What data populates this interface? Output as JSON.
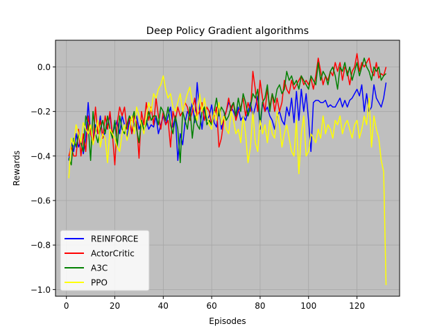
{
  "chart_data": {
    "type": "line",
    "title": "Deep Policy Gradient algorithms",
    "xlabel": "Episodes",
    "ylabel": "Rewards",
    "xlim": [
      -4.5,
      137.6
    ],
    "ylim": [
      -1.03,
      0.12
    ],
    "xticks": [
      0,
      20,
      40,
      60,
      80,
      100,
      120
    ],
    "yticks": [
      -1.0,
      -0.8,
      -0.6,
      -0.4,
      -0.2,
      0.0
    ],
    "ytick_labels": [
      "−1.0",
      "−0.8",
      "−0.6",
      "−0.4",
      "−0.2",
      "0.0"
    ],
    "grid": true,
    "background_color": "#bfbfbf",
    "legend_position": "lower-left",
    "series": [
      {
        "name": "REINFORCE",
        "color": "#0000ff",
        "x": [
          1,
          2,
          3,
          4,
          5,
          6,
          7,
          8,
          9,
          10,
          11,
          12,
          13,
          14,
          15,
          16,
          17,
          18,
          19,
          20,
          21,
          22,
          23,
          24,
          25,
          26,
          27,
          28,
          29,
          30,
          31,
          32,
          33,
          34,
          35,
          36,
          37,
          38,
          39,
          40,
          41,
          42,
          43,
          44,
          45,
          46,
          47,
          48,
          49,
          50,
          51,
          52,
          53,
          54,
          55,
          56,
          57,
          58,
          59,
          60,
          61,
          62,
          63,
          64,
          65,
          66,
          67,
          68,
          69,
          70,
          71,
          72,
          73,
          74,
          75,
          76,
          77,
          78,
          79,
          80,
          81,
          82,
          83,
          84,
          85,
          86,
          87,
          88,
          89,
          90,
          91,
          92,
          93,
          94,
          95,
          96,
          97,
          98,
          99,
          100,
          101,
          102,
          103,
          104,
          105,
          106,
          107,
          108,
          109,
          110,
          111,
          112,
          113,
          114,
          115,
          116,
          117,
          118,
          119,
          120,
          121,
          122,
          123,
          124,
          125,
          126,
          127,
          128,
          129,
          130,
          131,
          132
        ],
        "y": [
          -0.42,
          -0.34,
          -0.38,
          -0.3,
          -0.36,
          -0.33,
          -0.39,
          -0.32,
          -0.16,
          -0.3,
          -0.35,
          -0.26,
          -0.3,
          -0.22,
          -0.32,
          -0.29,
          -0.26,
          -0.22,
          -0.3,
          -0.27,
          -0.24,
          -0.3,
          -0.22,
          -0.26,
          -0.32,
          -0.24,
          -0.3,
          -0.26,
          -0.22,
          -0.28,
          -0.25,
          -0.29,
          -0.24,
          -0.28,
          -0.26,
          -0.27,
          -0.22,
          -0.3,
          -0.26,
          -0.22,
          -0.26,
          -0.22,
          -0.18,
          -0.27,
          -0.22,
          -0.42,
          -0.3,
          -0.35,
          -0.25,
          -0.2,
          -0.22,
          -0.16,
          -0.25,
          -0.07,
          -0.2,
          -0.28,
          -0.18,
          -0.24,
          -0.22,
          -0.17,
          -0.25,
          -0.27,
          -0.18,
          -0.28,
          -0.22,
          -0.2,
          -0.16,
          -0.18,
          -0.2,
          -0.23,
          -0.18,
          -0.24,
          -0.22,
          -0.24,
          -0.2,
          -0.16,
          -0.22,
          -0.18,
          -0.13,
          -0.28,
          -0.16,
          -0.2,
          -0.18,
          -0.22,
          -0.24,
          -0.28,
          -0.22,
          -0.2,
          -0.24,
          -0.26,
          -0.18,
          -0.22,
          -0.14,
          -0.25,
          -0.11,
          -0.24,
          -0.1,
          -0.2,
          -0.12,
          -0.24,
          -0.38,
          -0.16,
          -0.15,
          -0.15,
          -0.16,
          -0.16,
          -0.15,
          -0.18,
          -0.17,
          -0.18,
          -0.18,
          -0.16,
          -0.14,
          -0.18,
          -0.15,
          -0.18,
          -0.15,
          -0.14,
          -0.12,
          -0.1,
          -0.13,
          -0.08,
          -0.2,
          -0.12,
          -0.2,
          -0.18,
          -0.08,
          -0.14,
          -0.16,
          -0.18,
          -0.14,
          -0.07
        ]
      },
      {
        "name": "ActorCritic",
        "color": "#ff0000",
        "x": [
          1,
          2,
          3,
          4,
          5,
          6,
          7,
          8,
          9,
          10,
          11,
          12,
          13,
          14,
          15,
          16,
          17,
          18,
          19,
          20,
          21,
          22,
          23,
          24,
          25,
          26,
          27,
          28,
          29,
          30,
          31,
          32,
          33,
          34,
          35,
          36,
          37,
          38,
          39,
          40,
          41,
          42,
          43,
          44,
          45,
          46,
          47,
          48,
          49,
          50,
          51,
          52,
          53,
          54,
          55,
          56,
          57,
          58,
          59,
          60,
          61,
          62,
          63,
          64,
          65,
          66,
          67,
          68,
          69,
          70,
          71,
          72,
          73,
          74,
          75,
          76,
          77,
          78,
          79,
          80,
          81,
          82,
          83,
          84,
          85,
          86,
          87,
          88,
          89,
          90,
          91,
          92,
          93,
          94,
          95,
          96,
          97,
          98,
          99,
          100,
          101,
          102,
          103,
          104,
          105,
          106,
          107,
          108,
          109,
          110,
          111,
          112,
          113,
          114,
          115,
          116,
          117,
          118,
          119,
          120,
          121,
          122,
          123,
          124,
          125,
          126,
          127,
          128,
          129,
          130,
          131,
          132
        ],
        "y": [
          -0.4,
          -0.36,
          -0.4,
          -0.4,
          -0.28,
          -0.4,
          -0.3,
          -0.38,
          -0.22,
          -0.3,
          -0.34,
          -0.18,
          -0.3,
          -0.24,
          -0.32,
          -0.22,
          -0.28,
          -0.2,
          -0.3,
          -0.44,
          -0.25,
          -0.18,
          -0.22,
          -0.18,
          -0.28,
          -0.22,
          -0.3,
          -0.22,
          -0.25,
          -0.41,
          -0.2,
          -0.26,
          -0.16,
          -0.24,
          -0.18,
          -0.26,
          -0.14,
          -0.22,
          -0.28,
          -0.2,
          -0.26,
          -0.24,
          -0.36,
          -0.2,
          -0.24,
          -0.18,
          -0.22,
          -0.2,
          -0.16,
          -0.18,
          -0.24,
          -0.2,
          -0.14,
          -0.22,
          -0.2,
          -0.16,
          -0.24,
          -0.18,
          -0.2,
          -0.26,
          -0.22,
          -0.18,
          -0.36,
          -0.32,
          -0.24,
          -0.2,
          -0.14,
          -0.2,
          -0.16,
          -0.24,
          -0.2,
          -0.18,
          -0.14,
          -0.22,
          -0.16,
          -0.2,
          -0.02,
          -0.1,
          -0.2,
          -0.06,
          -0.14,
          -0.2,
          -0.1,
          -0.18,
          -0.12,
          -0.2,
          -0.14,
          -0.2,
          -0.16,
          -0.06,
          -0.1,
          -0.12,
          -0.06,
          -0.1,
          -0.08,
          -0.06,
          -0.04,
          -0.08,
          -0.06,
          -0.08,
          -0.05,
          -0.1,
          -0.04,
          0.04,
          -0.02,
          -0.08,
          -0.04,
          -0.06,
          -0.02,
          -0.04,
          0.02,
          -0.02,
          0.02,
          -0.06,
          0.0,
          -0.02,
          -0.08,
          -0.02,
          0.0,
          0.06,
          -0.02,
          0.02,
          0.0,
          0.02,
          0.04,
          -0.02,
          -0.04,
          0.02,
          -0.05,
          -0.03,
          -0.04,
          0.0
        ]
      },
      {
        "name": "A3C",
        "color": "#008000",
        "x": [
          1,
          2,
          3,
          4,
          5,
          6,
          7,
          8,
          9,
          10,
          11,
          12,
          13,
          14,
          15,
          16,
          17,
          18,
          19,
          20,
          21,
          22,
          23,
          24,
          25,
          26,
          27,
          28,
          29,
          30,
          31,
          32,
          33,
          34,
          35,
          36,
          37,
          38,
          39,
          40,
          41,
          42,
          43,
          44,
          45,
          46,
          47,
          48,
          49,
          50,
          51,
          52,
          53,
          54,
          55,
          56,
          57,
          58,
          59,
          60,
          61,
          62,
          63,
          64,
          65,
          66,
          67,
          68,
          69,
          70,
          71,
          72,
          73,
          74,
          75,
          76,
          77,
          78,
          79,
          80,
          81,
          82,
          83,
          84,
          85,
          86,
          87,
          88,
          89,
          90,
          91,
          92,
          93,
          94,
          95,
          96,
          97,
          98,
          99,
          100,
          101,
          102,
          103,
          104,
          105,
          106,
          107,
          108,
          109,
          110,
          111,
          112,
          113,
          114,
          115,
          116,
          117,
          118,
          119,
          120,
          121,
          122,
          123,
          124,
          125,
          126,
          127,
          128,
          129,
          130,
          131,
          132
        ],
        "y": [
          -0.41,
          -0.44,
          -0.32,
          -0.36,
          -0.3,
          -0.34,
          -0.38,
          -0.22,
          -0.26,
          -0.42,
          -0.2,
          -0.3,
          -0.34,
          -0.28,
          -0.24,
          -0.3,
          -0.22,
          -0.28,
          -0.32,
          -0.24,
          -0.36,
          -0.22,
          -0.28,
          -0.3,
          -0.26,
          -0.22,
          -0.24,
          -0.2,
          -0.28,
          -0.34,
          -0.24,
          -0.28,
          -0.26,
          -0.2,
          -0.24,
          -0.22,
          -0.22,
          -0.26,
          -0.18,
          -0.2,
          -0.24,
          -0.18,
          -0.26,
          -0.3,
          -0.22,
          -0.28,
          -0.43,
          -0.2,
          -0.24,
          -0.28,
          -0.18,
          -0.32,
          -0.22,
          -0.26,
          -0.28,
          -0.2,
          -0.18,
          -0.26,
          -0.24,
          -0.26,
          -0.2,
          -0.14,
          -0.22,
          -0.18,
          -0.2,
          -0.24,
          -0.22,
          -0.18,
          -0.16,
          -0.22,
          -0.14,
          -0.2,
          -0.12,
          -0.16,
          -0.22,
          -0.18,
          -0.12,
          -0.14,
          -0.1,
          -0.26,
          -0.16,
          -0.14,
          -0.08,
          -0.2,
          -0.12,
          -0.16,
          -0.1,
          -0.08,
          -0.12,
          -0.1,
          -0.02,
          -0.06,
          -0.04,
          -0.08,
          -0.06,
          -0.1,
          -0.04,
          -0.06,
          -0.08,
          -0.1,
          -0.04,
          -0.06,
          -0.08,
          0.02,
          -0.06,
          -0.02,
          -0.04,
          -0.08,
          -0.02,
          0.0,
          -0.04,
          -0.1,
          0.0,
          -0.02,
          0.02,
          -0.04,
          0.0,
          -0.06,
          -0.02,
          0.02,
          -0.04,
          0.0,
          0.04,
          0.0,
          -0.02,
          -0.06,
          0.0,
          -0.02,
          0.0,
          -0.06,
          -0.04,
          -0.03
        ]
      },
      {
        "name": "PPO",
        "color": "#ffff00",
        "x": [
          1,
          2,
          3,
          4,
          5,
          6,
          7,
          8,
          9,
          10,
          11,
          12,
          13,
          14,
          15,
          16,
          17,
          18,
          19,
          20,
          21,
          22,
          23,
          24,
          25,
          26,
          27,
          28,
          29,
          30,
          31,
          32,
          33,
          34,
          35,
          36,
          37,
          38,
          39,
          40,
          41,
          42,
          43,
          44,
          45,
          46,
          47,
          48,
          49,
          50,
          51,
          52,
          53,
          54,
          55,
          56,
          57,
          58,
          59,
          60,
          61,
          62,
          63,
          64,
          65,
          66,
          67,
          68,
          69,
          70,
          71,
          72,
          73,
          74,
          75,
          76,
          77,
          78,
          79,
          80,
          81,
          82,
          83,
          84,
          85,
          86,
          87,
          88,
          89,
          90,
          91,
          92,
          93,
          94,
          95,
          96,
          97,
          98,
          99,
          100,
          101,
          102,
          103,
          104,
          105,
          106,
          107,
          108,
          109,
          110,
          111,
          112,
          113,
          114,
          115,
          116,
          117,
          118,
          119,
          120,
          121,
          122,
          123,
          124,
          125,
          126,
          127,
          128,
          129,
          130,
          131,
          132
        ],
        "y": [
          -0.5,
          -0.32,
          -0.35,
          -0.26,
          -0.3,
          -0.34,
          -0.25,
          -0.28,
          -0.3,
          -0.26,
          -0.35,
          -0.3,
          -0.24,
          -0.36,
          -0.3,
          -0.32,
          -0.43,
          -0.28,
          -0.3,
          -0.32,
          -0.36,
          -0.38,
          -0.3,
          -0.26,
          -0.33,
          -0.28,
          -0.22,
          -0.3,
          -0.18,
          -0.22,
          -0.26,
          -0.3,
          -0.22,
          -0.16,
          -0.2,
          -0.12,
          -0.14,
          -0.1,
          -0.08,
          -0.04,
          -0.1,
          -0.14,
          -0.12,
          -0.18,
          -0.2,
          -0.16,
          -0.12,
          -0.2,
          -0.16,
          -0.12,
          -0.09,
          -0.16,
          -0.2,
          -0.24,
          -0.12,
          -0.2,
          -0.14,
          -0.22,
          -0.26,
          -0.28,
          -0.2,
          -0.24,
          -0.16,
          -0.26,
          -0.22,
          -0.28,
          -0.3,
          -0.2,
          -0.24,
          -0.3,
          -0.28,
          -0.34,
          -0.22,
          -0.3,
          -0.43,
          -0.36,
          -0.2,
          -0.34,
          -0.38,
          -0.24,
          -0.3,
          -0.26,
          -0.34,
          -0.24,
          -0.3,
          -0.32,
          -0.2,
          -0.26,
          -0.36,
          -0.3,
          -0.26,
          -0.32,
          -0.38,
          -0.4,
          -0.24,
          -0.48,
          -0.3,
          -0.22,
          -0.4,
          -0.38,
          -0.3,
          -0.32,
          -0.34,
          -0.28,
          -0.32,
          -0.22,
          -0.3,
          -0.26,
          -0.28,
          -0.32,
          -0.24,
          -0.26,
          -0.22,
          -0.3,
          -0.26,
          -0.24,
          -0.28,
          -0.32,
          -0.26,
          -0.24,
          -0.32,
          -0.28,
          -0.22,
          -0.26,
          -0.14,
          -0.36,
          -0.22,
          -0.28,
          -0.32,
          -0.42,
          -0.47,
          -0.98
        ]
      }
    ]
  }
}
